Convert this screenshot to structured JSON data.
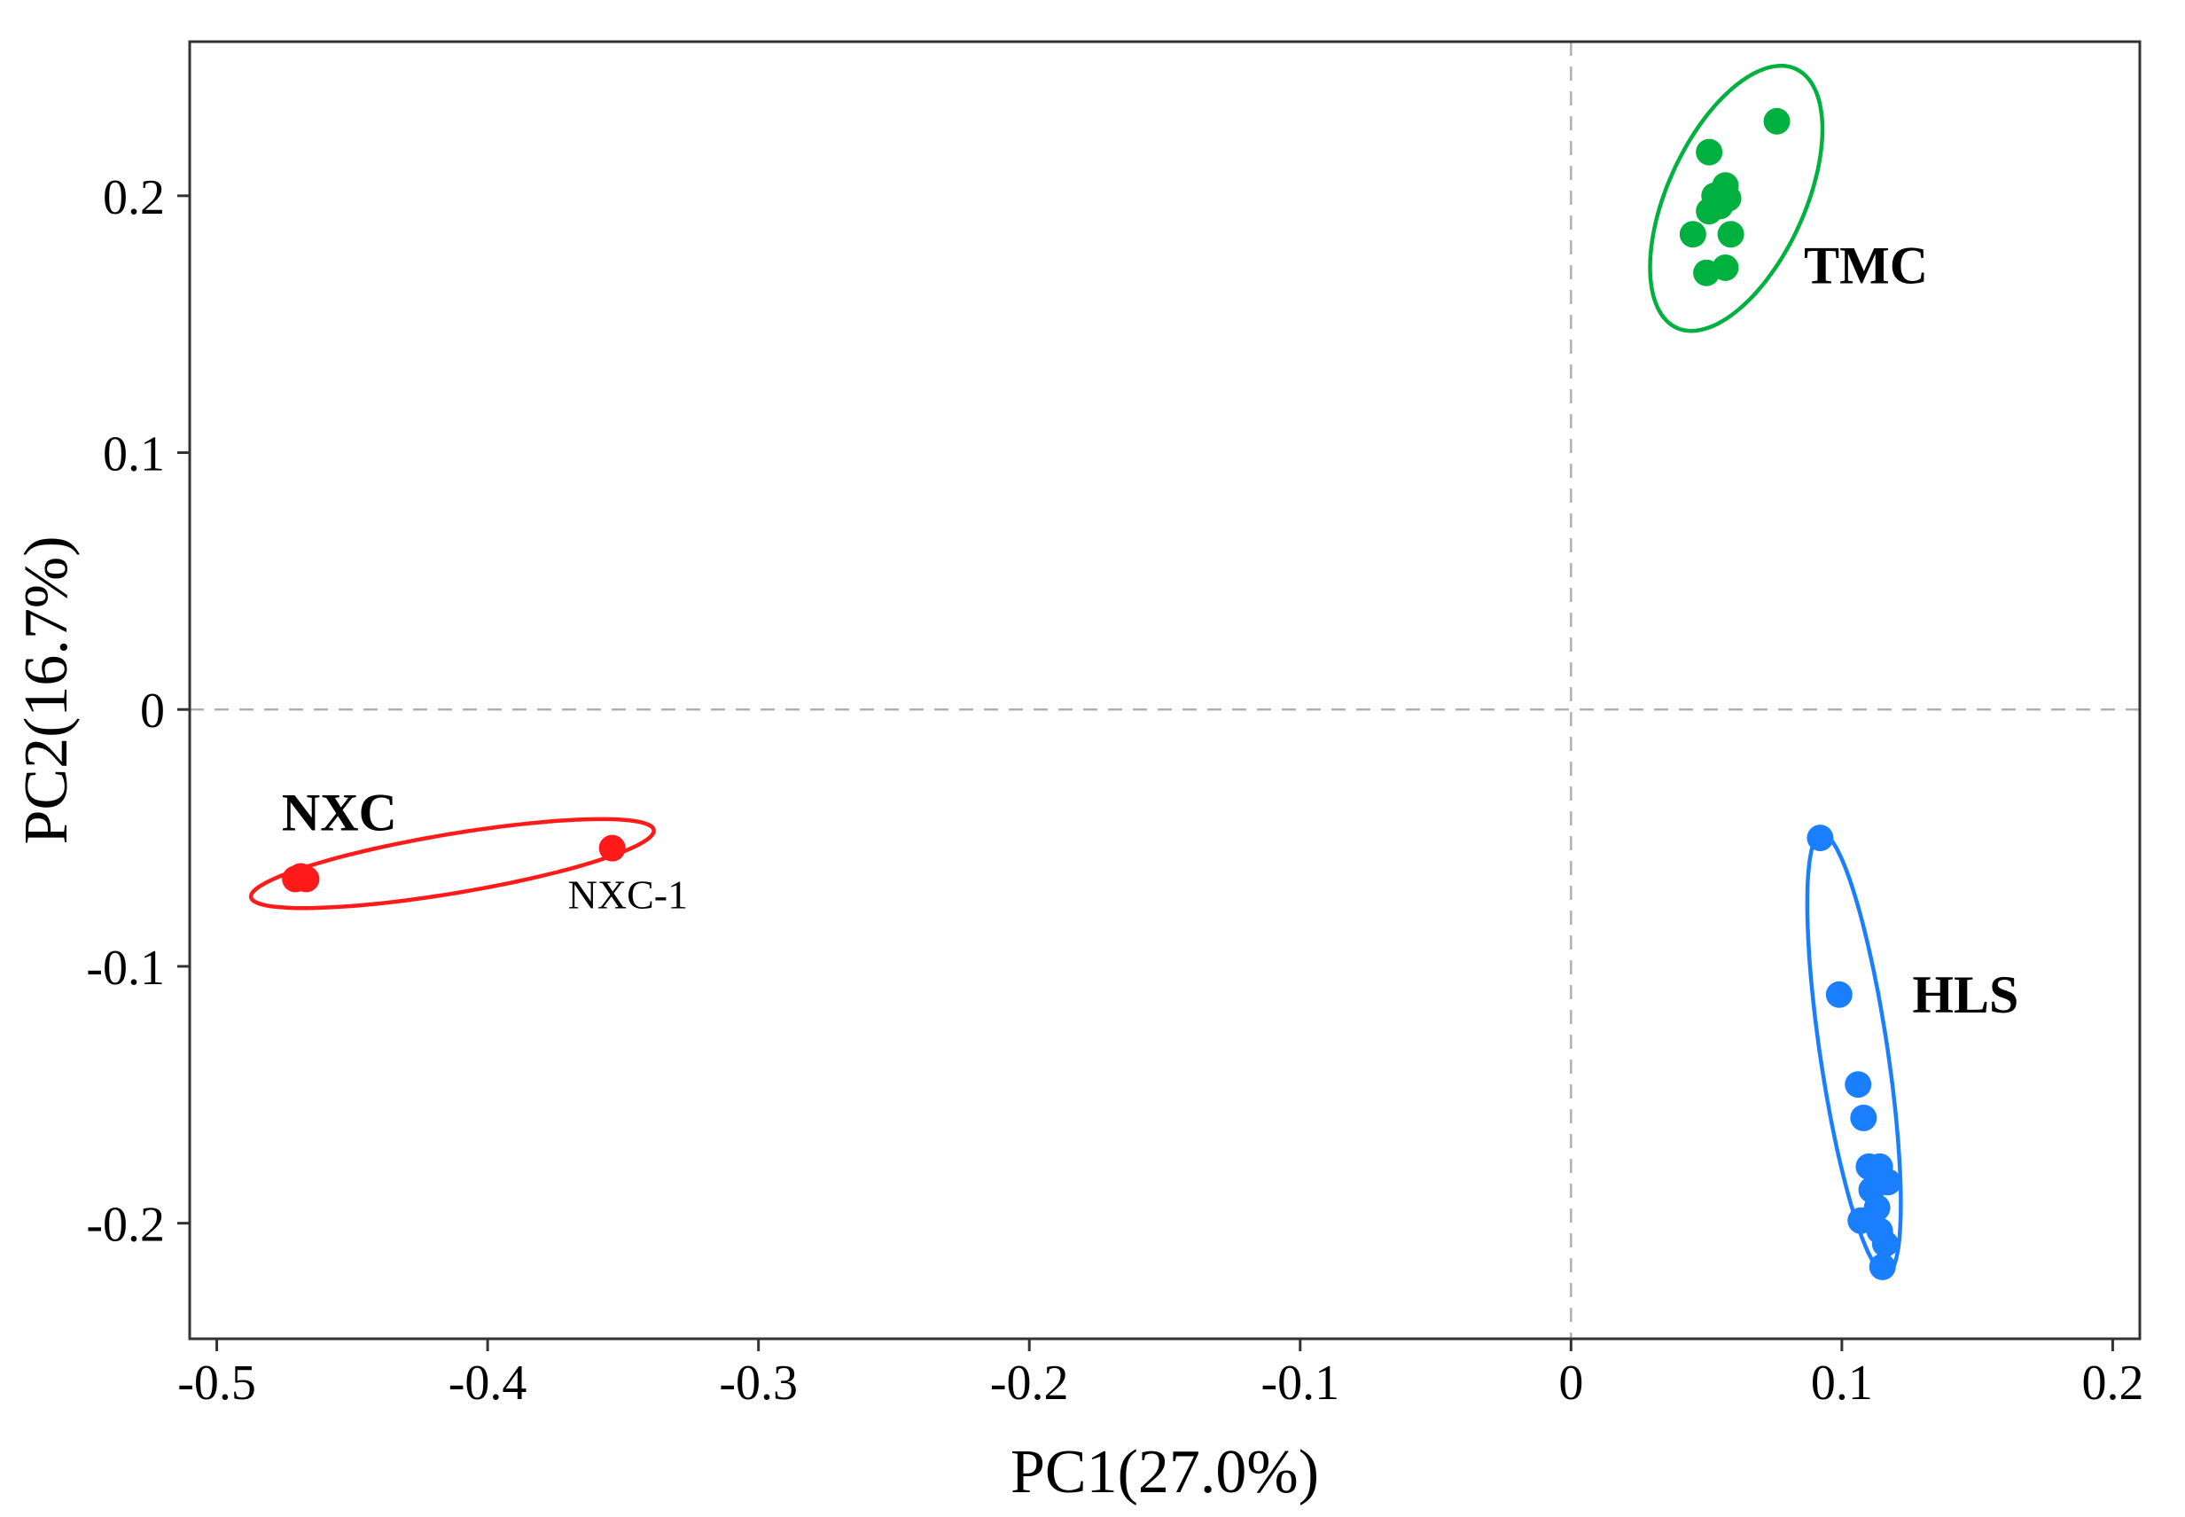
{
  "chart_data": {
    "type": "scatter",
    "title": "",
    "xlabel": "PC1(27.0%)",
    "ylabel": "PC2(16.7%)",
    "xlim": [
      -0.51,
      0.21
    ],
    "ylim": [
      -0.245,
      0.26
    ],
    "xticks": [
      -0.5,
      -0.4,
      -0.3,
      -0.2,
      -0.1,
      0,
      0.1,
      0.2
    ],
    "xtick_labels": [
      "-0.5",
      "-0.4",
      "-0.3",
      "-0.2",
      "-0.1",
      "0",
      "0.1",
      "0.2"
    ],
    "yticks": [
      -0.2,
      -0.1,
      0,
      0.1,
      0.2
    ],
    "ytick_labels": [
      "-0.2",
      "-0.1",
      "0",
      "0.1",
      "0.2"
    ],
    "grid": false,
    "reference_lines": {
      "x": 0,
      "y": 0,
      "style": "dashed"
    },
    "series": [
      {
        "name": "TMC",
        "color": "#00b140",
        "points": [
          [
            0.076,
            0.229
          ],
          [
            0.051,
            0.217
          ],
          [
            0.057,
            0.204
          ],
          [
            0.058,
            0.199
          ],
          [
            0.053,
            0.2
          ],
          [
            0.055,
            0.196
          ],
          [
            0.051,
            0.194
          ],
          [
            0.045,
            0.185
          ],
          [
            0.059,
            0.185
          ],
          [
            0.057,
            0.172
          ],
          [
            0.05,
            0.17
          ]
        ],
        "ellipse": {
          "center": [
            0.061,
            0.199
          ],
          "semi_axes": [
            0.055,
            0.0255
          ],
          "angle_deg": 67
        }
      },
      {
        "name": "NXC",
        "color": "#ff1a1a",
        "points": [
          [
            -0.471,
            -0.066
          ],
          [
            -0.467,
            -0.066
          ],
          [
            -0.469,
            -0.065
          ],
          [
            -0.354,
            -0.054
          ]
        ],
        "ellipse": {
          "center": [
            -0.413,
            -0.06
          ],
          "semi_axes": [
            0.0755,
            0.0115
          ],
          "angle_deg": 10
        },
        "point_labels": [
          {
            "text": "NXC-1",
            "at": [
              -0.354,
              -0.054
            ]
          }
        ]
      },
      {
        "name": "HLS",
        "color": "#1a7fff",
        "points": [
          [
            0.092,
            -0.05
          ],
          [
            0.099,
            -0.111
          ],
          [
            0.106,
            -0.146
          ],
          [
            0.108,
            -0.159
          ],
          [
            0.11,
            -0.178
          ],
          [
            0.114,
            -0.178
          ],
          [
            0.117,
            -0.184
          ],
          [
            0.111,
            -0.187
          ],
          [
            0.113,
            -0.194
          ],
          [
            0.107,
            -0.199
          ],
          [
            0.114,
            -0.203
          ],
          [
            0.116,
            -0.208
          ],
          [
            0.115,
            -0.217
          ]
        ],
        "ellipse": {
          "center": [
            0.1045,
            -0.134
          ],
          "semi_axes": [
            0.0865,
            0.0125
          ],
          "angle_deg": -82
        }
      }
    ],
    "annotations": [
      {
        "text": "TMC",
        "at": [
          0.086,
          0.166
        ]
      },
      {
        "text": "NXC",
        "at": [
          -0.476,
          -0.047
        ]
      },
      {
        "text": "HLS",
        "at": [
          0.126,
          -0.118
        ]
      }
    ]
  }
}
